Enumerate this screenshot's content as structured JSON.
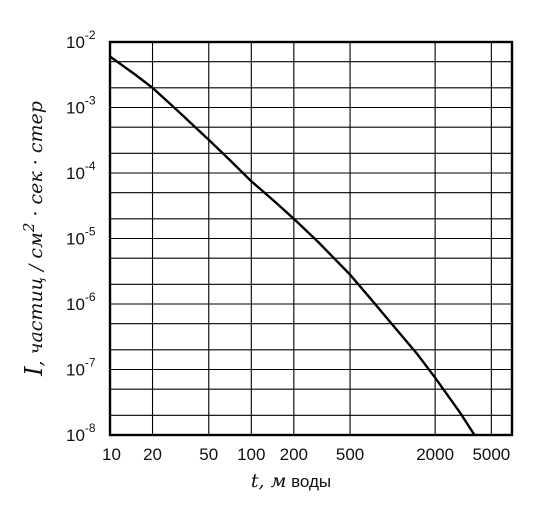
{
  "chart_data": {
    "type": "line",
    "xscale": "log",
    "yscale": "log",
    "xlim": [
      10,
      7000
    ],
    "ylim": [
      1e-08,
      0.01
    ],
    "grid": true,
    "xticks": [
      {
        "value": 10,
        "label": "10"
      },
      {
        "value": 20,
        "label": "20"
      },
      {
        "value": 50,
        "label": "50"
      },
      {
        "value": 100,
        "label": "100"
      },
      {
        "value": 200,
        "label": "200"
      },
      {
        "value": 500,
        "label": "500"
      },
      {
        "value": 2000,
        "label": "2000"
      },
      {
        "value": 5000,
        "label": "5000"
      }
    ],
    "yticks": [
      {
        "value": 0.01,
        "base": "10",
        "exp": "-2"
      },
      {
        "value": 0.001,
        "base": "10",
        "exp": "-3"
      },
      {
        "value": 0.0001,
        "base": "10",
        "exp": "-4"
      },
      {
        "value": 1e-05,
        "base": "10",
        "exp": "-5"
      },
      {
        "value": 1e-06,
        "base": "10",
        "exp": "-6"
      },
      {
        "value": 1e-07,
        "base": "10",
        "exp": "-7"
      },
      {
        "value": 1e-08,
        "base": "10",
        "exp": "-8"
      }
    ],
    "xlabel_var": "t",
    "xlabel_unit_italic": ", м",
    "xlabel_unit": " воды",
    "ylabel_var": "I",
    "ylabel_text": ", частиц / см",
    "ylabel_sup": "2",
    "ylabel_rest": " · сек · стер",
    "series": [
      {
        "x": [
          10,
          15,
          20,
          30,
          50,
          70,
          100,
          150,
          200,
          300,
          500,
          700,
          1000,
          1500,
          2000,
          3000,
          5000
        ],
        "y": [
          0.006,
          0.0032,
          0.002,
          0.0009,
          0.00032,
          0.00016,
          7.5e-05,
          3.5e-05,
          2e-05,
          8.7e-06,
          2.8e-06,
          1.2e-06,
          4.8e-07,
          1.7e-07,
          7.5e-08,
          2.2e-08,
          4e-09
        ]
      }
    ]
  }
}
